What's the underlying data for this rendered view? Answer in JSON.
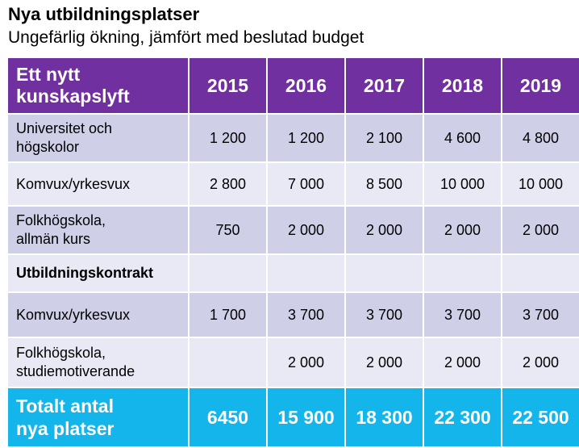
{
  "title": "Nya utbildningsplatser",
  "subtitle": "Ungefärlig ökning, jämfört med beslutad budget",
  "table": {
    "header": {
      "label_line1": "Ett nytt",
      "label_line2": "kunskapslyft",
      "years": [
        "2015",
        "2016",
        "2017",
        "2018",
        "2019"
      ]
    },
    "rows": [
      {
        "label_line1": "Universitet och",
        "label_line2": "högskolor",
        "values": [
          "1 200",
          "1 200",
          "2 100",
          "4 600",
          "4 800"
        ]
      },
      {
        "label_line1": "Komvux/yrkesvux",
        "label_line2": "",
        "values": [
          "2 800",
          "7 000",
          "8 500",
          "10 000",
          "10 000"
        ]
      },
      {
        "label_line1": "Folkhögskola,",
        "label_line2": "allmän kurs",
        "values": [
          "750",
          "2 000",
          "2 000",
          "2 000",
          "2 000"
        ]
      },
      {
        "label_line1": "Utbildningskontrakt",
        "label_line2": "",
        "values": [
          "",
          "",
          "",
          "",
          ""
        ]
      },
      {
        "label_line1": "Komvux/yrkesvux",
        "label_line2": "",
        "values": [
          "1 700",
          "3 700",
          "3 700",
          "3 700",
          "3 700"
        ]
      },
      {
        "label_line1": "Folkhögskola,",
        "label_line2": "studiemotiverande",
        "values": [
          "",
          "2 000",
          "2 000",
          "2 000",
          "2 000"
        ]
      }
    ],
    "total": {
      "label_line1": "Totalt antal",
      "label_line2": "nya platser",
      "values": [
        "6450",
        "15 900",
        "18 300",
        "22 300",
        "22 500"
      ]
    }
  },
  "colors": {
    "header_bg": "#7030A0",
    "row_dark": "#CFD0E8",
    "row_light": "#E8E9F4",
    "total_bg": "#13B5EA"
  }
}
